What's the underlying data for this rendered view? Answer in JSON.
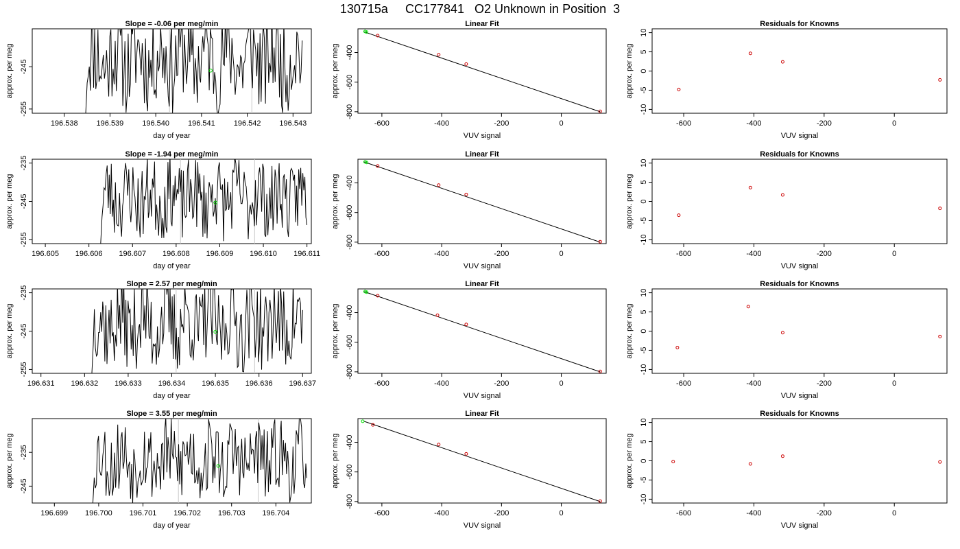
{
  "figure_title": "130715a     CC177841   O2 Unknown in Position  3",
  "colors": {
    "trace": "#000000",
    "unknown": "#00dd00",
    "known": "#cc0000",
    "vline": "#c8c8c8",
    "fitline": "#000000"
  },
  "chart_data": [
    {
      "type": "line",
      "title": "Slope =  -0.06  per meg/min",
      "xlabel": "day of year",
      "ylabel": "approx. per meg",
      "xlim": [
        196.5373,
        196.5434
      ],
      "ylim": [
        -256,
        -236
      ],
      "xticks": [
        "196.538",
        "196.539",
        "196.540",
        "196.541",
        "196.542",
        "196.543"
      ],
      "yticks": [
        "-255",
        "-245"
      ],
      "trace": {
        "x_start": 196.5385,
        "x_end": 196.5432,
        "y_mean": -243,
        "y_amp": 8,
        "seed": 11
      },
      "vlines": [
        196.5403,
        196.5421
      ],
      "marker": {
        "x": 196.5412,
        "y": -245.9
      }
    },
    {
      "type": "scatter",
      "title": "Linear Fit",
      "xlabel": "VUV signal",
      "ylabel": "approx. per meg",
      "xlim": [
        -680,
        150
      ],
      "ylim": [
        -810,
        -240
      ],
      "xticks": [
        "-600",
        "-400",
        "-200",
        "0"
      ],
      "yticks": [
        "-400",
        "-600",
        "-800"
      ],
      "fit": {
        "x": [
          -660,
          130
        ],
        "y": [
          -260,
          -800
        ]
      },
      "known": {
        "x": [
          -614,
          -410,
          -318,
          130
        ],
        "y": [
          -286,
          -415,
          -478,
          -797
        ]
      },
      "unknown": {
        "x": [
          -656,
          -651
        ],
        "y": [
          -258,
          -262
        ]
      }
    },
    {
      "type": "scatter",
      "title": "Residuals for Knowns",
      "xlabel": "VUV signal",
      "ylabel": "approx. per meg",
      "xlim": [
        -690,
        150
      ],
      "ylim": [
        -11,
        11
      ],
      "xticks": [
        "-600",
        "-400",
        "-200",
        "0"
      ],
      "yticks": [
        "10",
        "5",
        "0",
        "-5",
        "-10"
      ],
      "known": {
        "x": [
          -614,
          -410,
          -318,
          130
        ],
        "y": [
          -4.8,
          4.6,
          2.4,
          -2.3
        ]
      }
    },
    {
      "type": "line",
      "title": "Slope =  -1.94  per meg/min",
      "xlabel": "day of year",
      "ylabel": "approx. per meg",
      "xlim": [
        196.6047,
        196.6111
      ],
      "ylim": [
        -256,
        -234
      ],
      "xticks": [
        "196.605",
        "196.606",
        "196.607",
        "196.608",
        "196.609",
        "196.610",
        "196.611"
      ],
      "yticks": [
        "-235",
        "-245",
        "-255"
      ],
      "trace": {
        "x_start": 196.6063,
        "x_end": 196.611,
        "y_mean": -244,
        "y_amp": 7,
        "seed": 23
      },
      "vlines": [
        196.6081,
        196.6098
      ],
      "marker": {
        "x": 196.6089,
        "y": -245.3
      }
    },
    {
      "type": "scatter",
      "title": "Linear Fit",
      "xlabel": "VUV signal",
      "ylabel": "approx. per meg",
      "xlim": [
        -680,
        150
      ],
      "ylim": [
        -810,
        -240
      ],
      "xticks": [
        "-600",
        "-400",
        "-200",
        "0"
      ],
      "yticks": [
        "-400",
        "-600",
        "-800"
      ],
      "fit": {
        "x": [
          -660,
          130
        ],
        "y": [
          -258,
          -800
        ]
      },
      "known": {
        "x": [
          -614,
          -410,
          -318,
          130
        ],
        "y": [
          -286,
          -415,
          -478,
          -797
        ]
      },
      "unknown": {
        "x": [
          -656,
          -651
        ],
        "y": [
          -258,
          -262
        ]
      }
    },
    {
      "type": "scatter",
      "title": "Residuals for Knowns",
      "xlabel": "VUV signal",
      "ylabel": "approx. per meg",
      "xlim": [
        -690,
        150
      ],
      "ylim": [
        -11,
        11
      ],
      "xticks": [
        "-600",
        "-400",
        "-200",
        "0"
      ],
      "yticks": [
        "10",
        "5",
        "0",
        "-5",
        "-10"
      ],
      "known": {
        "x": [
          -614,
          -410,
          -318,
          130
        ],
        "y": [
          -3.6,
          3.6,
          1.7,
          -1.8
        ]
      }
    },
    {
      "type": "line",
      "title": "Slope =  2.57  per meg/min",
      "xlabel": "day of year",
      "ylabel": "approx. per meg",
      "xlim": [
        196.6308,
        196.6372
      ],
      "ylim": [
        -256,
        -234
      ],
      "xticks": [
        "196.631",
        "196.632",
        "196.633",
        "196.634",
        "196.635",
        "196.636",
        "196.637"
      ],
      "yticks": [
        "-235",
        "-245",
        "-255"
      ],
      "trace": {
        "x_start": 196.6322,
        "x_end": 196.637,
        "y_mean": -243,
        "y_amp": 8,
        "seed": 37
      },
      "vlines": [
        196.6341,
        196.6359
      ],
      "marker": {
        "x": 196.635,
        "y": -245.2
      }
    },
    {
      "type": "scatter",
      "title": "Linear Fit",
      "xlabel": "VUV signal",
      "ylabel": "approx. per meg",
      "xlim": [
        -680,
        150
      ],
      "ylim": [
        -810,
        -240
      ],
      "xticks": [
        "-600",
        "-400",
        "-200",
        "0"
      ],
      "yticks": [
        "-400",
        "-600",
        "-800"
      ],
      "fit": {
        "x": [
          -660,
          130
        ],
        "y": [
          -258,
          -800
        ]
      },
      "known": {
        "x": [
          -614,
          -414,
          -318,
          130
        ],
        "y": [
          -286,
          -418,
          -480,
          -797
        ]
      },
      "unknown": {
        "x": [
          -656,
          -651
        ],
        "y": [
          -258,
          -262
        ]
      }
    },
    {
      "type": "scatter",
      "title": "Residuals for Knowns",
      "xlabel": "VUV signal",
      "ylabel": "approx. per meg",
      "xlim": [
        -690,
        150
      ],
      "ylim": [
        -11,
        11
      ],
      "xticks": [
        "-600",
        "-400",
        "-200",
        "0"
      ],
      "yticks": [
        "10",
        "5",
        "0",
        "-5",
        "-10"
      ],
      "known": {
        "x": [
          -618,
          -416,
          -318,
          130
        ],
        "y": [
          -4.3,
          6.4,
          -0.4,
          -1.4
        ]
      }
    },
    {
      "type": "line",
      "title": "Slope =  3.55  per meg/min",
      "xlabel": "day of year",
      "ylabel": "approx. per meg",
      "xlim": [
        196.6985,
        196.7048
      ],
      "ylim": [
        -250,
        -225
      ],
      "xticks": [
        "196.699",
        "196.700",
        "196.701",
        "196.702",
        "196.703",
        "196.704"
      ],
      "yticks": [
        "-235",
        "-245"
      ],
      "trace": {
        "x_start": 196.6999,
        "x_end": 196.7047,
        "y_mean": -237,
        "y_amp": 8,
        "seed": 53
      },
      "vlines": [
        196.7018,
        196.7036
      ],
      "marker": {
        "x": 196.7027,
        "y": -239.0
      }
    },
    {
      "type": "scatter",
      "title": "Linear Fit",
      "xlabel": "VUV signal",
      "ylabel": "approx. per meg",
      "xlim": [
        -680,
        150
      ],
      "ylim": [
        -810,
        -240
      ],
      "xticks": [
        "-600",
        "-400",
        "-200",
        "0"
      ],
      "yticks": [
        "-400",
        "-600",
        "-800"
      ],
      "fit": {
        "x": [
          -660,
          130
        ],
        "y": [
          -258,
          -800
        ]
      },
      "known": {
        "x": [
          -630,
          -410,
          -318,
          130
        ],
        "y": [
          -282,
          -415,
          -478,
          -797
        ]
      },
      "unknown": {
        "x": [
          -664
        ],
        "y": [
          -258
        ]
      }
    },
    {
      "type": "scatter",
      "title": "Residuals for Knowns",
      "xlabel": "VUV signal",
      "ylabel": "approx. per meg",
      "xlim": [
        -690,
        150
      ],
      "ylim": [
        -11,
        11
      ],
      "xticks": [
        "-600",
        "-400",
        "-200",
        "0"
      ],
      "yticks": [
        "10",
        "5",
        "0",
        "-5",
        "-10"
      ],
      "known": {
        "x": [
          -630,
          -410,
          -318,
          130
        ],
        "y": [
          -0.2,
          -0.8,
          1.2,
          -0.3
        ]
      }
    }
  ]
}
